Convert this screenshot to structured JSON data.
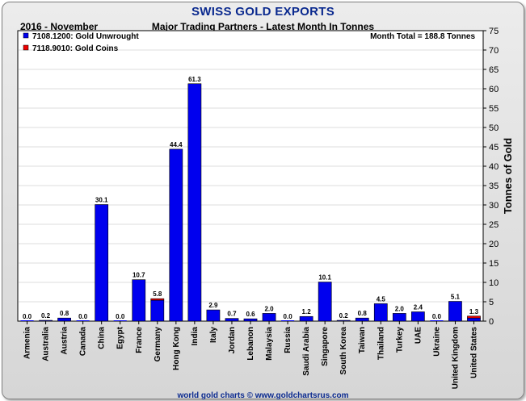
{
  "header": {
    "title": "SWISS GOLD EXPORTS",
    "period": "2016 - November",
    "subtitle": "Major Trading Partners - Latest Month In Tonnes",
    "month_total": "Month Total = 188.8 Tonnes"
  },
  "footer": "world gold charts © www.goldchartsrus.com",
  "colors": {
    "title": "#0b2a8f",
    "unwrought": "#0000ee",
    "coins": "#ee0000",
    "grid": "#dddddd"
  },
  "chart_data": {
    "type": "bar",
    "stacked": true,
    "ylabel": "Tonnes of Gold",
    "ylim": [
      0,
      75
    ],
    "yticks": [
      0,
      5,
      10,
      15,
      20,
      25,
      30,
      35,
      40,
      45,
      50,
      55,
      60,
      65,
      70,
      75
    ],
    "grid": true,
    "legend_position": "top-left",
    "categories": [
      "Armenia",
      "Australia",
      "Austria",
      "Canada",
      "China",
      "Egypt",
      "France",
      "Germany",
      "Hong Kong",
      "India",
      "Italy",
      "Jordan",
      "Lebanon",
      "Malaysia",
      "Russia",
      "Saudi Arabia",
      "Singapore",
      "South Korea",
      "Taiwan",
      "Thailand",
      "Turkey",
      "UAE",
      "Ukraine",
      "United Kingdom",
      "United States"
    ],
    "series": [
      {
        "name": "7108.1200: Gold Unwrought",
        "color": "#0000ee",
        "values": [
          0.0,
          0.2,
          0.8,
          0.0,
          30.1,
          0.0,
          10.7,
          5.4,
          44.4,
          61.3,
          2.9,
          0.7,
          0.6,
          2.0,
          0.0,
          1.2,
          10.1,
          0.2,
          0.8,
          4.5,
          2.0,
          2.4,
          0.0,
          5.1,
          0.8
        ]
      },
      {
        "name": "7118.9010: Gold Coins",
        "color": "#ee0000",
        "values": [
          0.0,
          0.0,
          0.0,
          0.0,
          0.0,
          0.0,
          0.0,
          0.4,
          0.0,
          0.0,
          0.0,
          0.0,
          0.0,
          0.0,
          0.0,
          0.0,
          0.0,
          0.0,
          0.0,
          0.0,
          0.0,
          0.0,
          0.0,
          0.0,
          0.5
        ]
      }
    ],
    "total_labels": [
      "0.0",
      "0.2",
      "0.8",
      "0.0",
      "30.1",
      "0.0",
      "10.7",
      "5.8",
      "44.4",
      "61.3",
      "2.9",
      "0.7",
      "0.6",
      "2.0",
      "0.0",
      "1.2",
      "10.1",
      "0.2",
      "0.8",
      "4.5",
      "2.0",
      "2.4",
      "0.0",
      "5.1",
      "1.3"
    ]
  }
}
